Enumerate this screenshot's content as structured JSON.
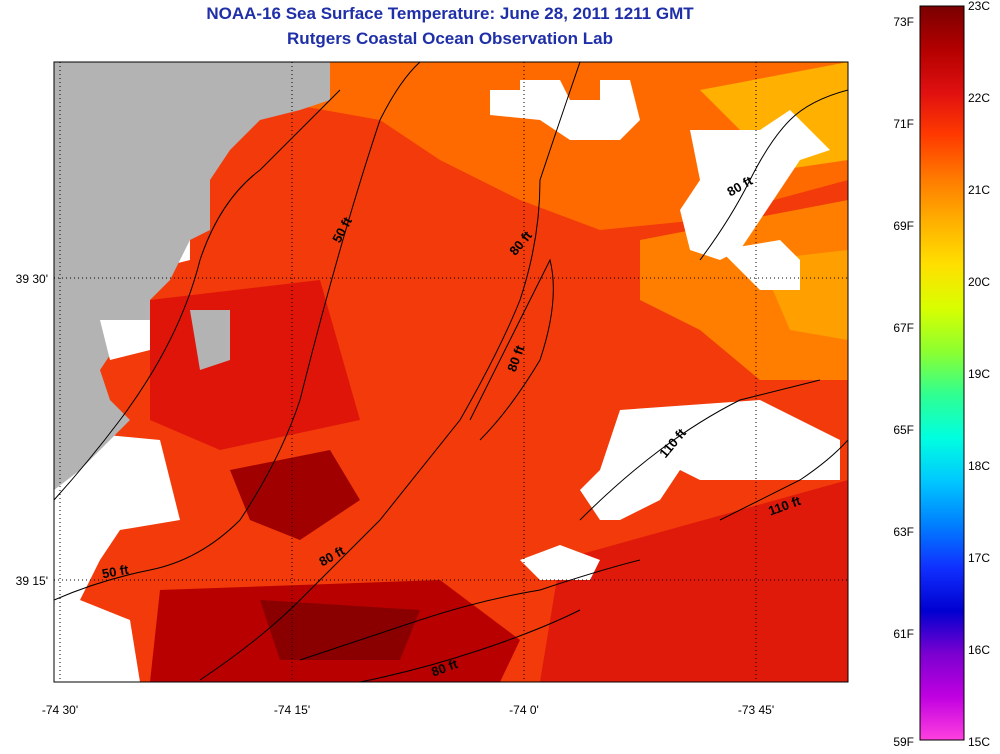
{
  "title": "NOAA-16 Sea Surface Temperature:  June 28, 2011 1211 GMT",
  "subtitle": "Rutgers Coastal Ocean Observation Lab",
  "map": {
    "lon_ticks": [
      {
        "value": -74.5,
        "label": "-74 30'"
      },
      {
        "value": -74.25,
        "label": "-74 15'"
      },
      {
        "value": -74.0,
        "label": "-74 0'"
      },
      {
        "value": -73.75,
        "label": "-73 45'"
      }
    ],
    "lat_ticks": [
      {
        "value": 39.5,
        "label": "39 30'"
      },
      {
        "value": 39.25,
        "label": "39 15'"
      }
    ],
    "land_color": "#b3b3b3",
    "cloud_color": "#ffffff",
    "grid": "dotted",
    "contour_labels": [
      {
        "text": "50 ft"
      },
      {
        "text": "50 ft"
      },
      {
        "text": "80 ft"
      },
      {
        "text": "80 ft"
      },
      {
        "text": "80 ft"
      },
      {
        "text": "80 ft"
      },
      {
        "text": "80 ft"
      },
      {
        "text": "110 ft"
      },
      {
        "text": "110 ft"
      }
    ]
  },
  "colorbar": {
    "fahrenheit_labels": [
      "73F",
      "71F",
      "69F",
      "67F",
      "65F",
      "63F",
      "61F",
      "59F"
    ],
    "celsius_labels": [
      "23C",
      "22C",
      "21C",
      "20C",
      "19C",
      "18C",
      "17C",
      "16C",
      "15C"
    ],
    "colors_top_to_bottom": [
      "#7a0000",
      "#b30000",
      "#e01010",
      "#ff3a00",
      "#ff7a00",
      "#ffb000",
      "#ffe000",
      "#d8ff00",
      "#8cff30",
      "#30ff90",
      "#00ffe0",
      "#00c8ff",
      "#0080ff",
      "#1030ff",
      "#0000d0",
      "#7a00d0",
      "#c000e0",
      "#ff40e0"
    ]
  }
}
